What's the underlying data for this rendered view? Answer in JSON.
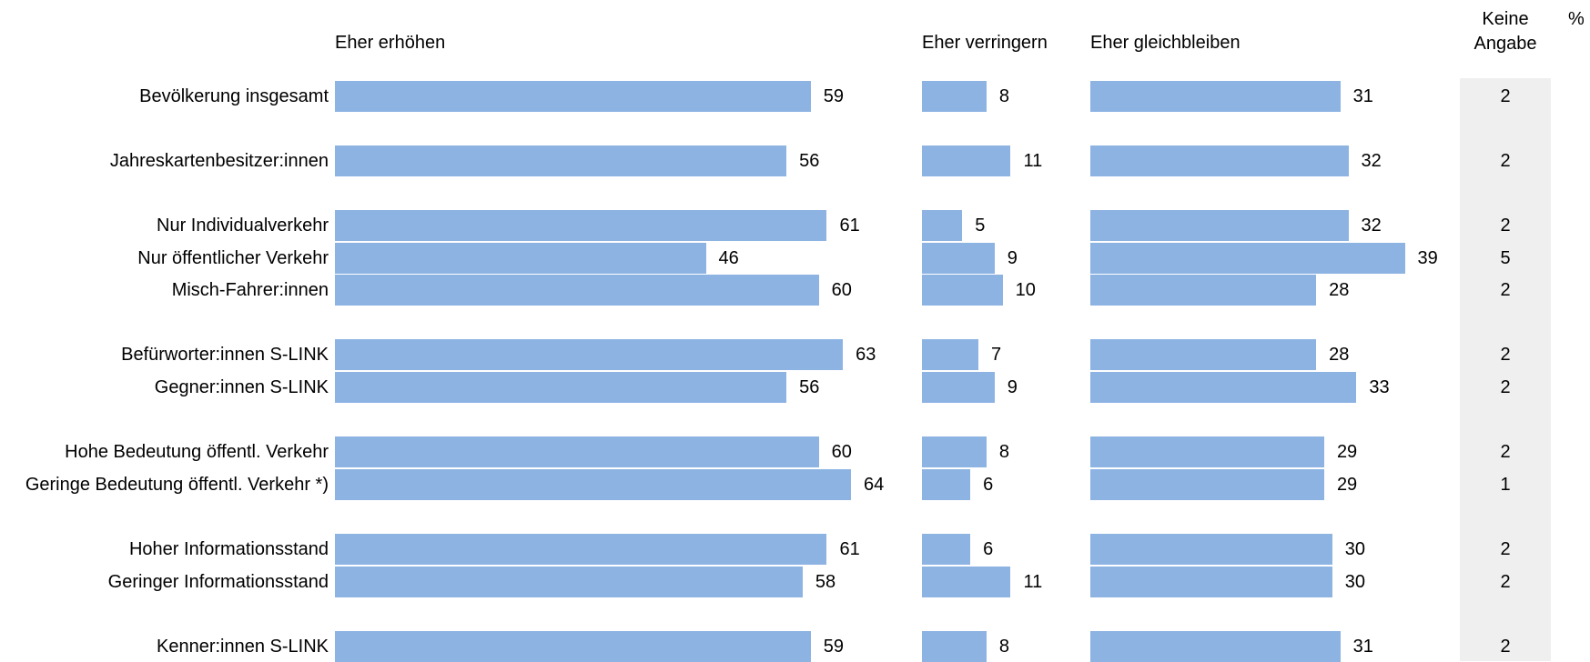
{
  "chart_data": {
    "type": "bar",
    "unit_label": "%",
    "colors": {
      "bar": "#8db3e3",
      "no_answer_bg": "#efefef"
    },
    "columns": [
      {
        "key": "erhoehen",
        "label": "Eher erhöhen"
      },
      {
        "key": "verringern",
        "label": "Eher verringern"
      },
      {
        "key": "gleichbleiben",
        "label": "Eher gleichbleiben"
      },
      {
        "key": "keine_angabe",
        "label_line1": "Keine",
        "label_line2": "Angabe"
      }
    ],
    "rows": [
      {
        "label": "Bevölkerung insgesamt",
        "erhoehen": 59,
        "verringern": 8,
        "gleichbleiben": 31,
        "keine_angabe": 2
      },
      {
        "label": "Jahreskartenbesitzer:innen",
        "erhoehen": 56,
        "verringern": 11,
        "gleichbleiben": 32,
        "keine_angabe": 2
      },
      {
        "label": "Nur Individualverkehr",
        "erhoehen": 61,
        "verringern": 5,
        "gleichbleiben": 32,
        "keine_angabe": 2
      },
      {
        "label": "Nur öffentlicher Verkehr",
        "erhoehen": 46,
        "verringern": 9,
        "gleichbleiben": 39,
        "keine_angabe": 5
      },
      {
        "label": "Misch-Fahrer:innen",
        "erhoehen": 60,
        "verringern": 10,
        "gleichbleiben": 28,
        "keine_angabe": 2
      },
      {
        "label": "Befürworter:innen S-LINK",
        "erhoehen": 63,
        "verringern": 7,
        "gleichbleiben": 28,
        "keine_angabe": 2
      },
      {
        "label": "Gegner:innen S-LINK",
        "erhoehen": 56,
        "verringern": 9,
        "gleichbleiben": 33,
        "keine_angabe": 2
      },
      {
        "label": "Hohe Bedeutung öffentl. Verkehr",
        "erhoehen": 60,
        "verringern": 8,
        "gleichbleiben": 29,
        "keine_angabe": 2
      },
      {
        "label": "Geringe Bedeutung öffentl. Verkehr *)",
        "erhoehen": 64,
        "verringern": 6,
        "gleichbleiben": 29,
        "keine_angabe": 1
      },
      {
        "label": "Hoher Informationsstand",
        "erhoehen": 61,
        "verringern": 6,
        "gleichbleiben": 30,
        "keine_angabe": 2
      },
      {
        "label": "Geringer Informationsstand",
        "erhoehen": 58,
        "verringern": 11,
        "gleichbleiben": 30,
        "keine_angabe": 2
      },
      {
        "label": "Kenner:innen S-LINK",
        "erhoehen": 59,
        "verringern": 8,
        "gleichbleiben": 31,
        "keine_angabe": 2
      }
    ]
  }
}
